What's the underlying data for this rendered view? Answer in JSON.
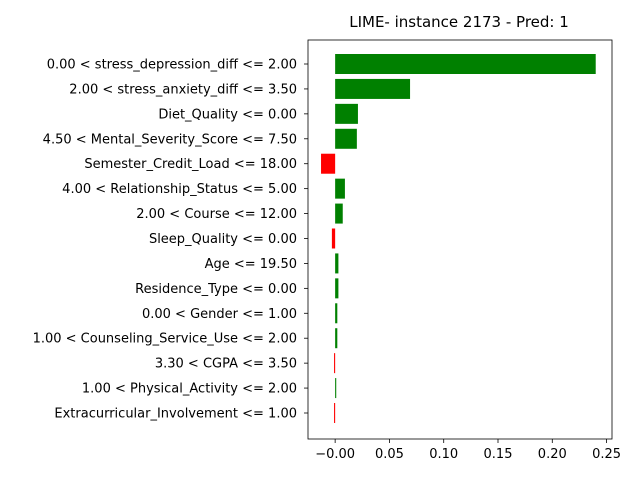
{
  "chart_data": {
    "type": "bar",
    "orientation": "horizontal",
    "title": "LIME- instance 2173 - Pred: 1",
    "xlabel": "",
    "ylabel": "",
    "xlim": [
      -0.025,
      0.255
    ],
    "xticks": [
      -0.0,
      0.05,
      0.1,
      0.15,
      0.2,
      0.25
    ],
    "xtick_labels": [
      "−0.00",
      "0.05",
      "0.10",
      "0.15",
      "0.20",
      "0.25"
    ],
    "grid": false,
    "colors": {
      "positive": "#008000",
      "negative": "#ff0000"
    },
    "categories": [
      "0.00 < stress_depression_diff <= 2.00",
      "2.00 < stress_anxiety_diff <= 3.50",
      "Diet_Quality <= 0.00",
      "4.50 < Mental_Severity_Score <= 7.50",
      "Semester_Credit_Load <= 18.00",
      "4.00 < Relationship_Status <= 5.00",
      "2.00 < Course <= 12.00",
      "Sleep_Quality <= 0.00",
      "Age <= 19.50",
      "Residence_Type <= 0.00",
      "0.00 < Gender <= 1.00",
      "1.00 < Counseling_Service_Use <= 2.00",
      "3.30 < CGPA <= 3.50",
      "1.00 < Physical_Activity <= 2.00",
      "Extracurricular_Involvement <= 1.00"
    ],
    "values": [
      0.24,
      0.069,
      0.021,
      0.02,
      -0.013,
      0.009,
      0.007,
      -0.003,
      0.003,
      0.003,
      0.002,
      0.002,
      -0.001,
      0.001,
      -0.001
    ]
  }
}
